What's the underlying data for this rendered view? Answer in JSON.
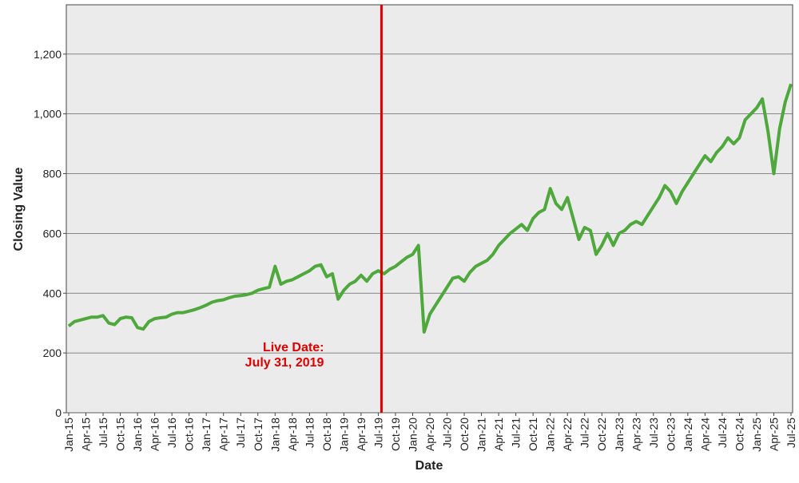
{
  "chart_data": {
    "type": "line",
    "x_label": "Date",
    "y_label": "Closing Value",
    "categories": [
      "Jan-15",
      null,
      null,
      "Apr-15",
      null,
      null,
      "Jul-15",
      null,
      null,
      "Oct-15",
      null,
      null,
      "Jan-16",
      null,
      null,
      "Apr-16",
      null,
      null,
      "Jul-16",
      null,
      null,
      "Oct-16",
      null,
      null,
      "Jan-17",
      null,
      null,
      "Apr-17",
      null,
      null,
      "Jul-17",
      null,
      null,
      "Oct-17",
      null,
      null,
      "Jan-18",
      null,
      null,
      "Apr-18",
      null,
      null,
      "Jul-18",
      null,
      null,
      "Oct-18",
      null,
      null,
      "Jan-19",
      null,
      null,
      "Apr-19",
      null,
      null,
      "Jul-19",
      null,
      null,
      "Oct-19",
      null,
      null,
      "Jan-20",
      null,
      null,
      "Apr-20",
      null,
      null,
      "Jul-20",
      null,
      null,
      "Oct-20",
      null,
      null,
      "Jan-21",
      null,
      null,
      "Apr-21",
      null,
      null,
      "Jul-21",
      null,
      null,
      "Oct-21",
      null,
      null,
      "Jan-22",
      null,
      null,
      "Apr-22",
      null,
      null,
      "Jul-22",
      null,
      null,
      "Oct-22",
      null,
      null,
      "Jan-23",
      null,
      null,
      "Apr-23",
      null,
      null,
      "Jul-23",
      null,
      null,
      "Oct-23",
      null,
      null,
      "Jan-24",
      null,
      null,
      "Apr-24",
      null,
      null,
      "Jul-24",
      null,
      null,
      "Oct-24",
      null,
      null,
      "Jan-25",
      null,
      null,
      "Apr-25",
      null,
      null,
      "Jul-25"
    ],
    "values": [
      290,
      305,
      310,
      315,
      320,
      320,
      325,
      300,
      295,
      315,
      320,
      318,
      285,
      280,
      305,
      315,
      318,
      320,
      330,
      335,
      335,
      340,
      345,
      352,
      360,
      370,
      375,
      378,
      385,
      390,
      392,
      395,
      400,
      410,
      415,
      420,
      490,
      430,
      440,
      445,
      455,
      465,
      475,
      490,
      495,
      455,
      465,
      380,
      410,
      430,
      440,
      460,
      440,
      465,
      475,
      465,
      480,
      490,
      505,
      520,
      530,
      560,
      270,
      330,
      360,
      390,
      420,
      450,
      455,
      440,
      470,
      490,
      500,
      510,
      530,
      560,
      580,
      600,
      615,
      630,
      610,
      650,
      670,
      680,
      750,
      700,
      680,
      720,
      650,
      580,
      620,
      610,
      530,
      560,
      600,
      560,
      600,
      610,
      630,
      640,
      630,
      660,
      690,
      720,
      760,
      740,
      700,
      740,
      770,
      800,
      830,
      860,
      840,
      870,
      890,
      920,
      900,
      920,
      980,
      1000,
      1020,
      1050,
      940,
      800,
      950,
      1040,
      1100
    ],
    "color": "#4ea83c",
    "ylim": [
      0,
      1365
    ],
    "yticks": [
      0,
      200,
      400,
      600,
      800,
      {
        "value": 1000,
        "label": "1,000"
      },
      {
        "value": 1200,
        "label": "1,200"
      }
    ],
    "grid": true,
    "annotation": {
      "lines": [
        "Live Date:",
        "July 31, 2019"
      ],
      "x": "Jul-19",
      "color": "#e00000"
    }
  }
}
